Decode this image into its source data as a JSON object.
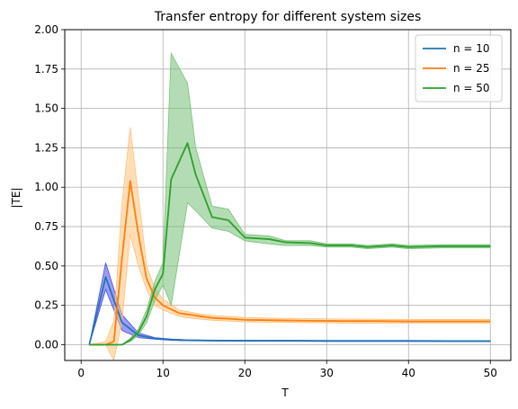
{
  "chart_data": {
    "type": "line",
    "title": "Transfer entropy for different system sizes",
    "xlabel": "T",
    "ylabel": "|TE|",
    "xlim": [
      -2,
      52.5
    ],
    "ylim": [
      -0.1,
      2.0
    ],
    "xticks": [
      0,
      10,
      20,
      30,
      40,
      50
    ],
    "yticks": [
      0.0,
      0.25,
      0.5,
      0.75,
      1.0,
      1.25,
      1.5,
      1.75,
      2.0
    ],
    "ytick_labels": [
      "0.00",
      "0.25",
      "0.50",
      "0.75",
      "1.00",
      "1.25",
      "1.50",
      "1.75",
      "2.00"
    ],
    "grid": true,
    "legend_position": "top-right",
    "series": [
      {
        "name": "n = 10",
        "color": "#1f77b4",
        "band_color": "#4a4af0",
        "x": [
          1,
          3,
          5,
          7,
          9,
          11,
          13,
          15,
          17,
          20,
          25,
          30,
          35,
          40,
          45,
          50
        ],
        "values": [
          0.0,
          0.43,
          0.14,
          0.06,
          0.04,
          0.032,
          0.028,
          0.027,
          0.026,
          0.025,
          0.025,
          0.024,
          0.024,
          0.024,
          0.023,
          0.023
        ],
        "lower": [
          0.0,
          0.35,
          0.09,
          0.045,
          0.035,
          0.028,
          0.025,
          0.024,
          0.023,
          0.022,
          0.022,
          0.021,
          0.021,
          0.021,
          0.02,
          0.02
        ],
        "upper": [
          0.0,
          0.52,
          0.19,
          0.075,
          0.045,
          0.036,
          0.031,
          0.03,
          0.029,
          0.028,
          0.028,
          0.027,
          0.027,
          0.027,
          0.026,
          0.026
        ]
      },
      {
        "name": "n = 25",
        "color": "#ff7f0e",
        "band_color": "#ffc27a",
        "x": [
          1,
          3,
          4,
          5,
          6,
          7,
          8,
          9,
          10,
          12,
          14,
          16,
          18,
          20,
          24,
          28,
          32,
          36,
          40,
          44,
          50
        ],
        "values": [
          0.0,
          0.0,
          0.02,
          0.55,
          1.04,
          0.7,
          0.42,
          0.3,
          0.25,
          0.2,
          0.185,
          0.17,
          0.165,
          0.158,
          0.155,
          0.152,
          0.15,
          0.15,
          0.148,
          0.148,
          0.148
        ],
        "lower": [
          0.0,
          0.0,
          -0.1,
          0.15,
          0.7,
          0.5,
          0.35,
          0.25,
          0.22,
          0.18,
          0.165,
          0.155,
          0.15,
          0.145,
          0.143,
          0.14,
          0.138,
          0.138,
          0.137,
          0.137,
          0.137
        ],
        "upper": [
          0.0,
          0.02,
          0.15,
          0.9,
          1.38,
          0.95,
          0.5,
          0.36,
          0.29,
          0.22,
          0.2,
          0.185,
          0.18,
          0.172,
          0.168,
          0.165,
          0.163,
          0.162,
          0.16,
          0.16,
          0.16
        ]
      },
      {
        "name": "n = 50",
        "color": "#2ca02c",
        "band_color": "#77c077",
        "x": [
          1,
          3,
          5,
          6,
          7,
          8,
          9,
          10,
          11,
          13,
          14,
          16,
          18,
          20,
          23,
          25,
          28,
          30,
          33,
          35,
          38,
          40,
          44,
          50
        ],
        "values": [
          0.0,
          0.0,
          0.0,
          0.03,
          0.08,
          0.18,
          0.35,
          0.45,
          1.05,
          1.28,
          1.08,
          0.81,
          0.79,
          0.68,
          0.67,
          0.65,
          0.645,
          0.63,
          0.63,
          0.62,
          0.63,
          0.62,
          0.625,
          0.625
        ],
        "lower": [
          0.0,
          0.0,
          0.0,
          0.02,
          0.06,
          0.14,
          0.28,
          0.38,
          0.25,
          0.9,
          0.85,
          0.74,
          0.72,
          0.66,
          0.64,
          0.63,
          0.63,
          0.62,
          0.62,
          0.61,
          0.62,
          0.61,
          0.615,
          0.615
        ],
        "upper": [
          0.0,
          0.0,
          0.0,
          0.04,
          0.1,
          0.22,
          0.4,
          0.52,
          1.85,
          1.66,
          1.25,
          0.88,
          0.86,
          0.7,
          0.69,
          0.66,
          0.66,
          0.64,
          0.64,
          0.63,
          0.64,
          0.63,
          0.635,
          0.635
        ]
      }
    ]
  }
}
